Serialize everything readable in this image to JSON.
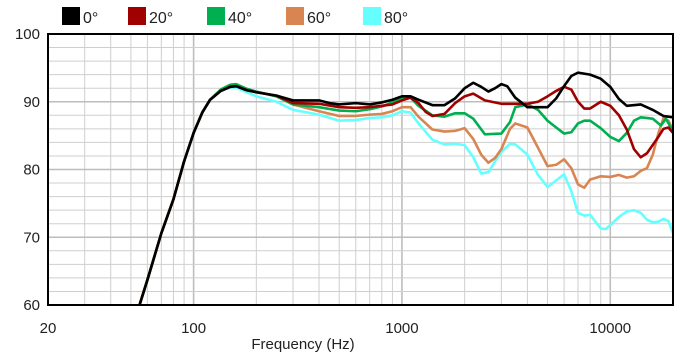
{
  "chart_data": {
    "type": "line",
    "title": "",
    "xlabel": "Frequency (Hz)",
    "ylabel": "",
    "x_scale": "log",
    "xlim": [
      20,
      20000
    ],
    "ylim": [
      60,
      100
    ],
    "x_ticks": [
      {
        "value": 20,
        "label": "20"
      },
      {
        "value": 100,
        "label": "100"
      },
      {
        "value": 1000,
        "label": "1000"
      },
      {
        "value": 10000,
        "label": "10000"
      }
    ],
    "y_ticks": [
      {
        "value": 60,
        "label": "60"
      },
      {
        "value": 70,
        "label": "70"
      },
      {
        "value": 80,
        "label": "80"
      },
      {
        "value": 90,
        "label": "90"
      },
      {
        "value": 100,
        "label": "100"
      }
    ],
    "grid": true,
    "legend_position": "top",
    "series": [
      {
        "name": "0°",
        "color": "#000000",
        "points": [
          [
            55,
            60
          ],
          [
            60,
            63.7
          ],
          [
            70,
            70.6
          ],
          [
            80,
            75.6
          ],
          [
            90,
            81.2
          ],
          [
            100,
            85.4
          ],
          [
            110,
            88.4
          ],
          [
            120,
            90.3
          ],
          [
            135,
            91.6
          ],
          [
            150,
            92.2
          ],
          [
            160,
            92.3
          ],
          [
            180,
            91.7
          ],
          [
            200,
            91.4
          ],
          [
            250,
            90.9
          ],
          [
            300,
            90.2
          ],
          [
            400,
            90.2
          ],
          [
            450,
            89.8
          ],
          [
            500,
            89.6
          ],
          [
            600,
            89.8
          ],
          [
            700,
            89.6
          ],
          [
            800,
            89.9
          ],
          [
            900,
            90.3
          ],
          [
            1000,
            90.8
          ],
          [
            1100,
            90.8
          ],
          [
            1200,
            90.3
          ],
          [
            1400,
            89.5
          ],
          [
            1600,
            89.5
          ],
          [
            1800,
            90.5
          ],
          [
            2000,
            92.0
          ],
          [
            2200,
            92.8
          ],
          [
            2400,
            92.2
          ],
          [
            2600,
            91.5
          ],
          [
            2800,
            92.0
          ],
          [
            3000,
            92.6
          ],
          [
            3200,
            92.3
          ],
          [
            3500,
            90.6
          ],
          [
            4000,
            89.2
          ],
          [
            5000,
            89.2
          ],
          [
            5500,
            90.5
          ],
          [
            6000,
            92.3
          ],
          [
            6500,
            93.8
          ],
          [
            7000,
            94.3
          ],
          [
            8000,
            94.0
          ],
          [
            9000,
            93.4
          ],
          [
            10000,
            92.2
          ],
          [
            11000,
            90.4
          ],
          [
            12000,
            89.4
          ],
          [
            14000,
            89.6
          ],
          [
            16000,
            88.8
          ],
          [
            18000,
            87.9
          ],
          [
            20000,
            87.7
          ]
        ]
      },
      {
        "name": "20°",
        "color": "#a00000",
        "points": [
          [
            55,
            60
          ],
          [
            60,
            63.7
          ],
          [
            70,
            70.6
          ],
          [
            80,
            75.6
          ],
          [
            90,
            81.2
          ],
          [
            100,
            85.4
          ],
          [
            110,
            88.4
          ],
          [
            120,
            90.3
          ],
          [
            135,
            91.6
          ],
          [
            150,
            92.2
          ],
          [
            160,
            92.3
          ],
          [
            180,
            91.7
          ],
          [
            200,
            91.4
          ],
          [
            250,
            90.9
          ],
          [
            300,
            89.8
          ],
          [
            400,
            89.7
          ],
          [
            500,
            89.2
          ],
          [
            600,
            89.1
          ],
          [
            700,
            89.2
          ],
          [
            800,
            89.4
          ],
          [
            900,
            89.6
          ],
          [
            1000,
            90.2
          ],
          [
            1100,
            90.6
          ],
          [
            1200,
            89.8
          ],
          [
            1300,
            88.5
          ],
          [
            1400,
            87.9
          ],
          [
            1600,
            88.2
          ],
          [
            1800,
            89.8
          ],
          [
            2000,
            90.8
          ],
          [
            2200,
            91.2
          ],
          [
            2500,
            90.2
          ],
          [
            3000,
            89.7
          ],
          [
            3500,
            89.7
          ],
          [
            4000,
            89.7
          ],
          [
            4500,
            90.0
          ],
          [
            5000,
            90.8
          ],
          [
            5500,
            91.6
          ],
          [
            6000,
            92.2
          ],
          [
            6500,
            91.8
          ],
          [
            7000,
            90.0
          ],
          [
            7500,
            89.0
          ],
          [
            8000,
            89.0
          ],
          [
            9000,
            90.0
          ],
          [
            10000,
            89.4
          ],
          [
            11000,
            88.0
          ],
          [
            12000,
            85.9
          ],
          [
            13000,
            83.0
          ],
          [
            14000,
            81.8
          ],
          [
            15000,
            82.4
          ],
          [
            17000,
            84.8
          ],
          [
            18000,
            86.0
          ],
          [
            19000,
            86.2
          ],
          [
            20000,
            85.4
          ]
        ]
      },
      {
        "name": "40°",
        "color": "#00b050",
        "points": [
          [
            55,
            60
          ],
          [
            60,
            63.7
          ],
          [
            70,
            70.6
          ],
          [
            80,
            75.6
          ],
          [
            90,
            81.2
          ],
          [
            100,
            85.4
          ],
          [
            110,
            88.4
          ],
          [
            120,
            90.3
          ],
          [
            135,
            91.8
          ],
          [
            150,
            92.5
          ],
          [
            160,
            92.6
          ],
          [
            180,
            91.9
          ],
          [
            200,
            91.5
          ],
          [
            250,
            90.8
          ],
          [
            300,
            89.6
          ],
          [
            400,
            89.2
          ],
          [
            500,
            88.7
          ],
          [
            600,
            88.6
          ],
          [
            700,
            88.9
          ],
          [
            800,
            89.3
          ],
          [
            900,
            89.9
          ],
          [
            1000,
            90.6
          ],
          [
            1100,
            90.6
          ],
          [
            1200,
            89.4
          ],
          [
            1400,
            88.0
          ],
          [
            1600,
            87.8
          ],
          [
            1800,
            88.3
          ],
          [
            2000,
            88.3
          ],
          [
            2200,
            87.5
          ],
          [
            2500,
            85.2
          ],
          [
            3000,
            85.3
          ],
          [
            3300,
            87.0
          ],
          [
            3500,
            89.2
          ],
          [
            4000,
            89.6
          ],
          [
            4500,
            88.8
          ],
          [
            5000,
            87.2
          ],
          [
            5500,
            86.2
          ],
          [
            6000,
            85.3
          ],
          [
            6500,
            85.5
          ],
          [
            7000,
            86.8
          ],
          [
            7500,
            87.2
          ],
          [
            8000,
            87.2
          ],
          [
            9000,
            86.1
          ],
          [
            10000,
            84.8
          ],
          [
            11000,
            84.2
          ],
          [
            12000,
            85.4
          ],
          [
            13000,
            87.2
          ],
          [
            14000,
            87.7
          ],
          [
            16000,
            87.5
          ],
          [
            17500,
            86.5
          ],
          [
            18500,
            87.5
          ],
          [
            20000,
            85.6
          ]
        ]
      },
      {
        "name": "60°",
        "color": "#d98552",
        "points": [
          [
            55,
            60
          ],
          [
            60,
            63.7
          ],
          [
            70,
            70.6
          ],
          [
            80,
            75.6
          ],
          [
            90,
            81.2
          ],
          [
            100,
            85.4
          ],
          [
            110,
            88.4
          ],
          [
            120,
            90.3
          ],
          [
            135,
            91.8
          ],
          [
            150,
            92.5
          ],
          [
            160,
            92.6
          ],
          [
            180,
            91.9
          ],
          [
            200,
            91.5
          ],
          [
            250,
            90.8
          ],
          [
            300,
            89.6
          ],
          [
            400,
            88.6
          ],
          [
            500,
            87.9
          ],
          [
            600,
            87.9
          ],
          [
            700,
            88.1
          ],
          [
            800,
            88.2
          ],
          [
            900,
            88.6
          ],
          [
            1000,
            89.2
          ],
          [
            1100,
            89.2
          ],
          [
            1200,
            87.8
          ],
          [
            1400,
            85.9
          ],
          [
            1600,
            85.6
          ],
          [
            1800,
            85.7
          ],
          [
            2000,
            86.1
          ],
          [
            2200,
            84.5
          ],
          [
            2400,
            82.2
          ],
          [
            2600,
            81.0
          ],
          [
            2800,
            81.7
          ],
          [
            3000,
            83.0
          ],
          [
            3300,
            86.0
          ],
          [
            3500,
            86.8
          ],
          [
            4000,
            86.2
          ],
          [
            4500,
            83.2
          ],
          [
            5000,
            80.5
          ],
          [
            5500,
            80.7
          ],
          [
            6000,
            81.5
          ],
          [
            6500,
            80.2
          ],
          [
            7000,
            77.8
          ],
          [
            7500,
            77.3
          ],
          [
            8000,
            78.5
          ],
          [
            9000,
            79.0
          ],
          [
            10000,
            78.9
          ],
          [
            11000,
            79.2
          ],
          [
            12000,
            78.8
          ],
          [
            13000,
            79.0
          ],
          [
            14000,
            79.8
          ],
          [
            15000,
            80.2
          ],
          [
            16000,
            82.2
          ],
          [
            17000,
            85.3
          ],
          [
            18000,
            87.6
          ],
          [
            19000,
            87.2
          ],
          [
            20000,
            85.8
          ]
        ]
      },
      {
        "name": "80°",
        "color": "#66ffff",
        "points": [
          [
            55,
            60
          ],
          [
            60,
            63.7
          ],
          [
            70,
            70.6
          ],
          [
            80,
            75.6
          ],
          [
            90,
            81.2
          ],
          [
            100,
            85.4
          ],
          [
            110,
            88.4
          ],
          [
            120,
            90.3
          ],
          [
            135,
            91.6
          ],
          [
            150,
            92.1
          ],
          [
            160,
            92.1
          ],
          [
            180,
            91.4
          ],
          [
            200,
            90.8
          ],
          [
            250,
            90.0
          ],
          [
            300,
            88.8
          ],
          [
            400,
            88.1
          ],
          [
            500,
            87.2
          ],
          [
            600,
            87.3
          ],
          [
            700,
            87.6
          ],
          [
            800,
            87.7
          ],
          [
            900,
            88.0
          ],
          [
            1000,
            88.6
          ],
          [
            1100,
            88.4
          ],
          [
            1200,
            86.8
          ],
          [
            1400,
            84.4
          ],
          [
            1600,
            83.7
          ],
          [
            1800,
            83.8
          ],
          [
            2000,
            83.6
          ],
          [
            2200,
            81.8
          ],
          [
            2400,
            79.4
          ],
          [
            2600,
            79.6
          ],
          [
            2800,
            81.2
          ],
          [
            3000,
            82.6
          ],
          [
            3300,
            83.8
          ],
          [
            3500,
            83.7
          ],
          [
            4000,
            82.2
          ],
          [
            4500,
            79.2
          ],
          [
            5000,
            77.4
          ],
          [
            5500,
            78.4
          ],
          [
            6000,
            79.3
          ],
          [
            6500,
            76.8
          ],
          [
            7000,
            73.6
          ],
          [
            7500,
            73.2
          ],
          [
            8000,
            73.3
          ],
          [
            9000,
            71.3
          ],
          [
            9500,
            71.2
          ],
          [
            10000,
            71.8
          ],
          [
            11000,
            73.0
          ],
          [
            12000,
            73.8
          ],
          [
            13000,
            74.0
          ],
          [
            14000,
            73.6
          ],
          [
            15000,
            72.6
          ],
          [
            16000,
            72.2
          ],
          [
            17000,
            72.3
          ],
          [
            18000,
            72.7
          ],
          [
            19000,
            72.4
          ],
          [
            20000,
            70.6
          ]
        ]
      }
    ]
  }
}
